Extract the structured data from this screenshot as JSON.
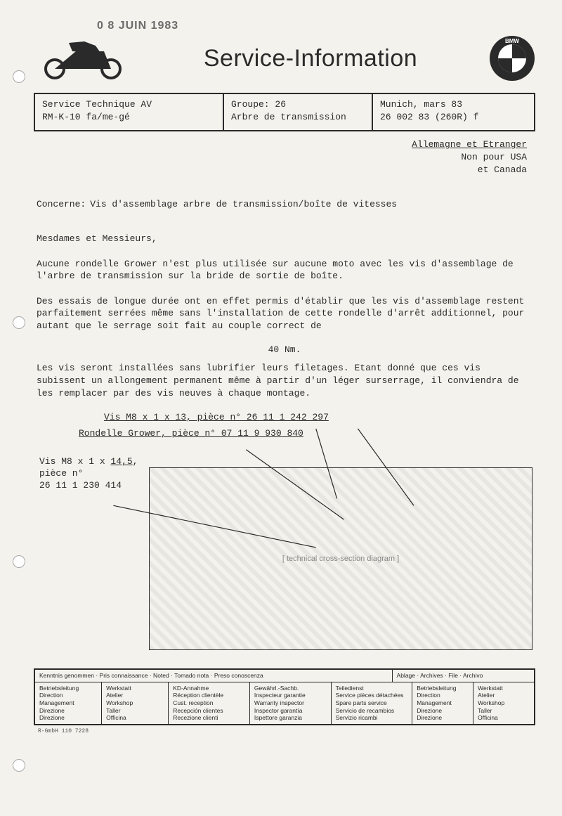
{
  "stamp": "0 8 JUIN 1983",
  "title": "Service-Information",
  "logo_text": "BMW",
  "info": {
    "col_a_l1": "Service Technique AV",
    "col_a_l2": "RM-K-10    fa/me-gé",
    "col_b_l1": "Groupe: 26",
    "col_b_l2": "Arbre de transmission",
    "col_c_l1": "Munich, mars 83",
    "col_c_l2": "26 002 83 (260R) f"
  },
  "region": {
    "line1": "Allemagne et Etranger",
    "line2": "Non pour USA",
    "line3": "et Canada"
  },
  "concerne_label": "Concerne:",
  "concerne_text": "Vis d'assemblage arbre de transmission/boîte de vitesses",
  "salutation": "Mesdames et Messieurs,",
  "p1": "Aucune rondelle Grower n'est plus utilisée sur aucune moto avec les vis d'assemblage de l'arbre de transmission sur la bride de sortie de boîte.",
  "p2": "Des essais de longue durée ont en effet permis d'établir que les vis d'assemblage restent parfaitement serrées même sans l'installation de cette rondelle d'arrêt additionnel, pour autant que le serrage soit fait au couple correct de",
  "torque": "40 Nm.",
  "p3": "Les vis seront installées sans lubrifier leurs filetages. Etant donné que ces vis subissent un allongement permanent même à partir d'un léger surserrage, il conviendra de les remplacer par des vis neuves à chaque montage.",
  "callouts": {
    "c1_pre": "Vis M8 x 1 x ",
    "c1_u": "13",
    "c1_post": ", pièce n° 26 11 1 242 297",
    "c2": "Rondelle Grower, pièce n° 07 11 9 930 840",
    "c3_pre": "Vis M8 x 1 x ",
    "c3_u": "14,5",
    "c3_post": ",",
    "c3_l2": "pièce n°",
    "c3_l3": "26 11 1 230 414"
  },
  "diagram_label": "[ technical cross-section diagram ]",
  "footer": {
    "head1": "Kenntnis genommen · Pris connaissance · Noted · Tomado nota · Preso conoscenza",
    "head2": "Ablage · Archives · File · Archivo",
    "cols": [
      [
        "Betriebsleitung",
        "Direction",
        "Management",
        "Direzione",
        "Direzione"
      ],
      [
        "Werkstatt",
        "Atelier",
        "Workshop",
        "Taller",
        "Officina"
      ],
      [
        "KD-Annahme",
        "Réception clientèle",
        "Cust. reception",
        "Recepción clientes",
        "Recezione clienti"
      ],
      [
        "Gewährl.-Sachb.",
        "Inspecteur garantie",
        "Warranty inspector",
        "Inspector garantía",
        "Ispettore garanzia"
      ],
      [
        "Teiledienst",
        "Service pièces détachées",
        "Spare parts service",
        "Servicio de recambios",
        "Servizio ricambi"
      ],
      [
        "Betriebsleitung",
        "Direction",
        "Management",
        "Direzione",
        "Direzione"
      ],
      [
        "Werkstatt",
        "Atelier",
        "Workshop",
        "Taller",
        "Officina"
      ]
    ]
  },
  "footnote": "R-GmbH 110    7228",
  "colors": {
    "fg": "#2a2a2a",
    "bg": "#f4f2ec"
  }
}
